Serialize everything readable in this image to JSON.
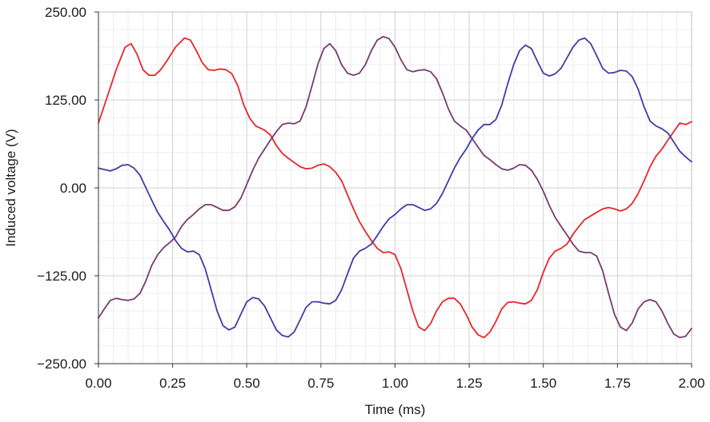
{
  "chart_data": {
    "type": "line",
    "title": "",
    "xlabel": "Time (ms)",
    "ylabel": "Induced voltage (V)",
    "xlim": [
      0,
      2
    ],
    "ylim": [
      -250,
      250
    ],
    "x_ticks": [
      0,
      0.25,
      0.5,
      0.75,
      1.0,
      1.25,
      1.5,
      1.75,
      2.0
    ],
    "x_tick_labels": [
      "0.00",
      "0.25",
      "0.50",
      "0.75",
      "1.00",
      "1.25",
      "1.50",
      "1.75",
      "2.00"
    ],
    "y_ticks": [
      250,
      125,
      0,
      -125,
      -250
    ],
    "y_tick_labels": [
      "250.00",
      "125.00",
      "0.00",
      "−125.00",
      "−250.00"
    ],
    "grid": true,
    "minor_grid": true,
    "legend": "none",
    "series": [
      {
        "color": "#e8262b",
        "points": [
          [
            0.0,
            92
          ],
          [
            0.03,
            130
          ],
          [
            0.06,
            168
          ],
          [
            0.09,
            200
          ],
          [
            0.11,
            205
          ],
          [
            0.13,
            190
          ],
          [
            0.15,
            168
          ],
          [
            0.17,
            160
          ],
          [
            0.19,
            160
          ],
          [
            0.21,
            168
          ],
          [
            0.23,
            180
          ],
          [
            0.26,
            200
          ],
          [
            0.29,
            213
          ],
          [
            0.31,
            210
          ],
          [
            0.33,
            195
          ],
          [
            0.35,
            178
          ],
          [
            0.37,
            168
          ],
          [
            0.39,
            167
          ],
          [
            0.41,
            169
          ],
          [
            0.43,
            168
          ],
          [
            0.45,
            162
          ],
          [
            0.47,
            145
          ],
          [
            0.49,
            118
          ],
          [
            0.51,
            99
          ],
          [
            0.53,
            88
          ],
          [
            0.56,
            82
          ],
          [
            0.58,
            75
          ],
          [
            0.6,
            60
          ],
          [
            0.62,
            49
          ],
          [
            0.64,
            42
          ],
          [
            0.66,
            36
          ],
          [
            0.68,
            30
          ],
          [
            0.7,
            27
          ],
          [
            0.72,
            28
          ],
          [
            0.74,
            32
          ],
          [
            0.76,
            34
          ],
          [
            0.78,
            30
          ],
          [
            0.8,
            22
          ],
          [
            0.82,
            10
          ],
          [
            0.84,
            -10
          ],
          [
            0.86,
            -30
          ],
          [
            0.88,
            -48
          ],
          [
            0.9,
            -62
          ],
          [
            0.92,
            -75
          ],
          [
            0.94,
            -86
          ],
          [
            0.96,
            -92
          ],
          [
            0.98,
            -91
          ],
          [
            1.0,
            -95
          ],
          [
            1.02,
            -115
          ],
          [
            1.04,
            -145
          ],
          [
            1.06,
            -175
          ],
          [
            1.08,
            -198
          ],
          [
            1.1,
            -203
          ],
          [
            1.12,
            -193
          ],
          [
            1.14,
            -175
          ],
          [
            1.16,
            -162
          ],
          [
            1.18,
            -157
          ],
          [
            1.2,
            -157
          ],
          [
            1.22,
            -165
          ],
          [
            1.24,
            -180
          ],
          [
            1.26,
            -198
          ],
          [
            1.28,
            -209
          ],
          [
            1.3,
            -213
          ],
          [
            1.32,
            -205
          ],
          [
            1.34,
            -190
          ],
          [
            1.36,
            -172
          ],
          [
            1.38,
            -163
          ],
          [
            1.4,
            -162
          ],
          [
            1.42,
            -164
          ],
          [
            1.44,
            -165
          ],
          [
            1.46,
            -160
          ],
          [
            1.48,
            -145
          ],
          [
            1.5,
            -120
          ],
          [
            1.52,
            -100
          ],
          [
            1.54,
            -90
          ],
          [
            1.56,
            -86
          ],
          [
            1.58,
            -80
          ],
          [
            1.6,
            -66
          ],
          [
            1.62,
            -55
          ],
          [
            1.64,
            -45
          ],
          [
            1.66,
            -40
          ],
          [
            1.68,
            -35
          ],
          [
            1.7,
            -30
          ],
          [
            1.72,
            -28
          ],
          [
            1.74,
            -30
          ],
          [
            1.76,
            -33
          ],
          [
            1.78,
            -30
          ],
          [
            1.8,
            -22
          ],
          [
            1.82,
            -8
          ],
          [
            1.84,
            10
          ],
          [
            1.86,
            30
          ],
          [
            1.88,
            45
          ],
          [
            1.9,
            55
          ],
          [
            1.92,
            68
          ],
          [
            1.94,
            80
          ],
          [
            1.96,
            92
          ],
          [
            1.98,
            90
          ],
          [
            2.0,
            94
          ]
        ]
      },
      {
        "color": "#7a3a6e",
        "points": [
          [
            0.0,
            -185
          ],
          [
            0.02,
            -172
          ],
          [
            0.04,
            -160
          ],
          [
            0.06,
            -157
          ],
          [
            0.08,
            -159
          ],
          [
            0.1,
            -160
          ],
          [
            0.12,
            -158
          ],
          [
            0.14,
            -150
          ],
          [
            0.16,
            -132
          ],
          [
            0.18,
            -110
          ],
          [
            0.2,
            -95
          ],
          [
            0.22,
            -85
          ],
          [
            0.24,
            -78
          ],
          [
            0.26,
            -70
          ],
          [
            0.28,
            -55
          ],
          [
            0.3,
            -45
          ],
          [
            0.32,
            -38
          ],
          [
            0.34,
            -30
          ],
          [
            0.36,
            -24
          ],
          [
            0.38,
            -24
          ],
          [
            0.4,
            -28
          ],
          [
            0.42,
            -32
          ],
          [
            0.44,
            -32
          ],
          [
            0.46,
            -27
          ],
          [
            0.48,
            -15
          ],
          [
            0.5,
            5
          ],
          [
            0.52,
            25
          ],
          [
            0.54,
            42
          ],
          [
            0.56,
            55
          ],
          [
            0.58,
            68
          ],
          [
            0.6,
            80
          ],
          [
            0.62,
            90
          ],
          [
            0.64,
            92
          ],
          [
            0.66,
            91
          ],
          [
            0.68,
            95
          ],
          [
            0.7,
            115
          ],
          [
            0.72,
            145
          ],
          [
            0.74,
            176
          ],
          [
            0.76,
            198
          ],
          [
            0.78,
            205
          ],
          [
            0.8,
            195
          ],
          [
            0.82,
            175
          ],
          [
            0.84,
            163
          ],
          [
            0.86,
            160
          ],
          [
            0.88,
            163
          ],
          [
            0.9,
            175
          ],
          [
            0.92,
            195
          ],
          [
            0.94,
            210
          ],
          [
            0.96,
            215
          ],
          [
            0.98,
            212
          ],
          [
            1.0,
            200
          ],
          [
            1.02,
            182
          ],
          [
            1.04,
            168
          ],
          [
            1.06,
            165
          ],
          [
            1.08,
            167
          ],
          [
            1.1,
            168
          ],
          [
            1.12,
            165
          ],
          [
            1.14,
            155
          ],
          [
            1.16,
            135
          ],
          [
            1.18,
            112
          ],
          [
            1.2,
            95
          ],
          [
            1.22,
            88
          ],
          [
            1.24,
            82
          ],
          [
            1.26,
            70
          ],
          [
            1.28,
            58
          ],
          [
            1.3,
            46
          ],
          [
            1.32,
            40
          ],
          [
            1.34,
            33
          ],
          [
            1.36,
            27
          ],
          [
            1.38,
            25
          ],
          [
            1.4,
            28
          ],
          [
            1.42,
            33
          ],
          [
            1.44,
            32
          ],
          [
            1.46,
            25
          ],
          [
            1.48,
            12
          ],
          [
            1.5,
            -5
          ],
          [
            1.52,
            -25
          ],
          [
            1.54,
            -42
          ],
          [
            1.56,
            -55
          ],
          [
            1.58,
            -67
          ],
          [
            1.6,
            -80
          ],
          [
            1.62,
            -90
          ],
          [
            1.64,
            -92
          ],
          [
            1.66,
            -92
          ],
          [
            1.68,
            -97
          ],
          [
            1.7,
            -118
          ],
          [
            1.72,
            -150
          ],
          [
            1.74,
            -180
          ],
          [
            1.76,
            -198
          ],
          [
            1.78,
            -203
          ],
          [
            1.8,
            -192
          ],
          [
            1.82,
            -172
          ],
          [
            1.84,
            -162
          ],
          [
            1.86,
            -159
          ],
          [
            1.88,
            -162
          ],
          [
            1.9,
            -175
          ],
          [
            1.92,
            -193
          ],
          [
            1.94,
            -208
          ],
          [
            1.96,
            -213
          ],
          [
            1.98,
            -211
          ],
          [
            2.0,
            -200
          ]
        ]
      },
      {
        "color": "#3f3ea8",
        "points": [
          [
            0.0,
            28
          ],
          [
            0.02,
            26
          ],
          [
            0.04,
            24
          ],
          [
            0.06,
            27
          ],
          [
            0.08,
            32
          ],
          [
            0.1,
            33
          ],
          [
            0.12,
            28
          ],
          [
            0.14,
            18
          ],
          [
            0.16,
            0
          ],
          [
            0.18,
            -18
          ],
          [
            0.2,
            -35
          ],
          [
            0.22,
            -48
          ],
          [
            0.24,
            -60
          ],
          [
            0.26,
            -75
          ],
          [
            0.28,
            -86
          ],
          [
            0.3,
            -91
          ],
          [
            0.32,
            -90
          ],
          [
            0.34,
            -95
          ],
          [
            0.36,
            -115
          ],
          [
            0.38,
            -145
          ],
          [
            0.4,
            -175
          ],
          [
            0.42,
            -196
          ],
          [
            0.44,
            -202
          ],
          [
            0.46,
            -198
          ],
          [
            0.48,
            -180
          ],
          [
            0.5,
            -162
          ],
          [
            0.52,
            -156
          ],
          [
            0.54,
            -158
          ],
          [
            0.56,
            -168
          ],
          [
            0.58,
            -185
          ],
          [
            0.6,
            -202
          ],
          [
            0.62,
            -210
          ],
          [
            0.64,
            -212
          ],
          [
            0.66,
            -205
          ],
          [
            0.68,
            -188
          ],
          [
            0.7,
            -170
          ],
          [
            0.72,
            -162
          ],
          [
            0.74,
            -162
          ],
          [
            0.76,
            -164
          ],
          [
            0.78,
            -165
          ],
          [
            0.8,
            -160
          ],
          [
            0.82,
            -145
          ],
          [
            0.84,
            -122
          ],
          [
            0.86,
            -100
          ],
          [
            0.88,
            -90
          ],
          [
            0.9,
            -86
          ],
          [
            0.92,
            -80
          ],
          [
            0.94,
            -68
          ],
          [
            0.96,
            -55
          ],
          [
            0.98,
            -44
          ],
          [
            1.0,
            -38
          ],
          [
            1.02,
            -30
          ],
          [
            1.04,
            -24
          ],
          [
            1.06,
            -24
          ],
          [
            1.08,
            -28
          ],
          [
            1.1,
            -32
          ],
          [
            1.12,
            -30
          ],
          [
            1.14,
            -22
          ],
          [
            1.16,
            -8
          ],
          [
            1.18,
            10
          ],
          [
            1.2,
            28
          ],
          [
            1.22,
            43
          ],
          [
            1.24,
            55
          ],
          [
            1.26,
            70
          ],
          [
            1.28,
            82
          ],
          [
            1.3,
            90
          ],
          [
            1.32,
            90
          ],
          [
            1.34,
            97
          ],
          [
            1.36,
            118
          ],
          [
            1.38,
            148
          ],
          [
            1.4,
            175
          ],
          [
            1.42,
            195
          ],
          [
            1.44,
            203
          ],
          [
            1.46,
            198
          ],
          [
            1.48,
            180
          ],
          [
            1.5,
            163
          ],
          [
            1.52,
            159
          ],
          [
            1.54,
            162
          ],
          [
            1.56,
            170
          ],
          [
            1.58,
            185
          ],
          [
            1.6,
            200
          ],
          [
            1.62,
            210
          ],
          [
            1.64,
            213
          ],
          [
            1.66,
            205
          ],
          [
            1.68,
            188
          ],
          [
            1.7,
            170
          ],
          [
            1.72,
            163
          ],
          [
            1.74,
            164
          ],
          [
            1.76,
            167
          ],
          [
            1.78,
            166
          ],
          [
            1.8,
            158
          ],
          [
            1.82,
            140
          ],
          [
            1.84,
            115
          ],
          [
            1.86,
            95
          ],
          [
            1.88,
            88
          ],
          [
            1.9,
            84
          ],
          [
            1.92,
            78
          ],
          [
            1.94,
            65
          ],
          [
            1.96,
            52
          ],
          [
            1.98,
            44
          ],
          [
            2.0,
            37
          ]
        ]
      }
    ]
  }
}
